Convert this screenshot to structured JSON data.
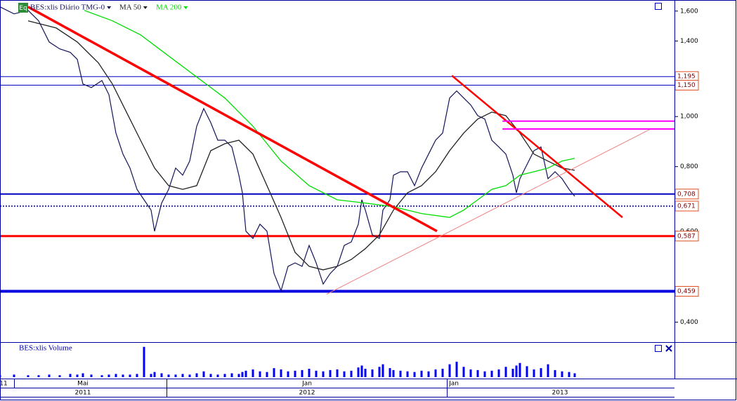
{
  "toolbar": {
    "eq_label": "Eq"
  },
  "chart_data": {
    "type": "line",
    "log_scale": true,
    "xlim": [
      0,
      120
    ],
    "ylim": [
      0.366,
      1.66
    ],
    "yticks": [
      {
        "value": 1.6,
        "label": "1,600"
      },
      {
        "value": 1.4,
        "label": "1,400"
      },
      {
        "value": 1.0,
        "label": "1,000"
      },
      {
        "value": 0.8,
        "label": "0,800"
      },
      {
        "value": 0.6,
        "label": "0,600"
      },
      {
        "value": 0.4,
        "label": "0,400"
      }
    ],
    "xticks": [
      {
        "value": 0.625,
        "label": "11"
      },
      {
        "value": 14.75,
        "label": "Mai"
      },
      {
        "value": 54.625,
        "label": "Jan"
      },
      {
        "value": 80.75,
        "label": "Jan"
      }
    ],
    "year_ticks": [
      {
        "value": 14.75,
        "label": "2011"
      },
      {
        "value": 54.625,
        "label": "2012"
      },
      {
        "value": 99.625,
        "label": "2013"
      }
    ],
    "x_boundaries": [
      2.5,
      29.625,
      79.5
    ],
    "series": [
      {
        "name": "BES:xlis Diário TMG-0",
        "color": "#14145a",
        "x": [
          0,
          2.5,
          5,
          6.875,
          8.75,
          10.625,
          12.5,
          13.75,
          14.75,
          16.25,
          18.125,
          19.375,
          20.625,
          21.875,
          23.125,
          24.375,
          25.625,
          26.875,
          27.5,
          28.75,
          30,
          31.25,
          32.5,
          33.75,
          35,
          36.25,
          37.5,
          38.75,
          40,
          41.25,
          42.5,
          43.125,
          43.75,
          45,
          46.25,
          47.5,
          48.75,
          50,
          51.25,
          52.5,
          53.75,
          55,
          56.25,
          57.5,
          58.75,
          60,
          61.25,
          62.5,
          63.75,
          64.375,
          65,
          66.25,
          67.5,
          68.125,
          69.375,
          70,
          71.25,
          72.5,
          73.75,
          75,
          76.25,
          77.5,
          78.75,
          80,
          81.25,
          82.5,
          83.75,
          85,
          86.25,
          87.5,
          88.75,
          90,
          91.25,
          91.875,
          92.5,
          93.75,
          95,
          96.25,
          97.5,
          98.75,
          100,
          101.25,
          102.25
        ],
        "values": [
          1.63,
          1.58,
          1.605,
          1.532,
          1.394,
          1.352,
          1.331,
          1.29,
          1.156,
          1.138,
          1.174,
          1.103,
          0.929,
          0.846,
          0.795,
          0.723,
          0.69,
          0.659,
          0.6,
          0.68,
          0.723,
          0.795,
          0.77,
          0.82,
          0.958,
          1.036,
          0.973,
          0.9,
          0.9,
          0.873,
          0.77,
          0.712,
          0.6,
          0.581,
          0.619,
          0.6,
          0.497,
          0.46,
          0.513,
          0.521,
          0.513,
          0.563,
          0.521,
          0.474,
          0.497,
          0.513,
          0.563,
          0.572,
          0.619,
          0.69,
          0.659,
          0.59,
          0.581,
          0.659,
          0.69,
          0.77,
          0.782,
          0.782,
          0.735,
          0.795,
          0.846,
          0.9,
          0.929,
          1.086,
          1.121,
          1.086,
          1.053,
          1.004,
          0.989,
          0.9,
          0.873,
          0.846,
          0.77,
          0.712,
          0.758,
          0.807,
          0.859,
          0.873,
          0.758,
          0.782,
          0.758,
          0.723,
          0.701
        ]
      },
      {
        "name": "MA 50",
        "color": "#222222",
        "x": [
          5,
          10,
          13.75,
          17.5,
          20,
          22.5,
          25,
          27.5,
          30,
          32.5,
          35,
          37.5,
          40,
          42.5,
          45,
          47.5,
          50,
          52.5,
          55,
          57.5,
          60,
          62.5,
          65,
          67.5,
          70,
          72.5,
          75,
          77.5,
          80,
          82.5,
          85,
          87.5,
          90,
          92.5,
          95,
          97.5,
          100,
          102.25
        ],
        "values": [
          1.532,
          1.484,
          1.394,
          1.27,
          1.156,
          1.02,
          0.9,
          0.795,
          0.735,
          0.723,
          0.735,
          0.859,
          0.886,
          0.9,
          0.846,
          0.735,
          0.638,
          0.546,
          0.513,
          0.505,
          0.513,
          0.529,
          0.555,
          0.59,
          0.659,
          0.712,
          0.735,
          0.782,
          0.859,
          0.929,
          0.989,
          1.02,
          1.004,
          0.929,
          0.846,
          0.82,
          0.795,
          0.787
        ]
      },
      {
        "name": "MA 200",
        "color": "#00dd00",
        "x": [
          15,
          20,
          25,
          30,
          35,
          40,
          45,
          50,
          55,
          60,
          65,
          70,
          75,
          80,
          82.5,
          85,
          87.5,
          90,
          92.5,
          95,
          97.5,
          100,
          102.25
        ],
        "values": [
          1.605,
          1.532,
          1.439,
          1.31,
          1.193,
          1.086,
          0.958,
          0.82,
          0.735,
          0.69,
          0.68,
          0.669,
          0.649,
          0.638,
          0.659,
          0.69,
          0.723,
          0.735,
          0.77,
          0.782,
          0.795,
          0.82,
          0.83
        ]
      }
    ],
    "levels": [
      {
        "value": 1.195,
        "label": "1,195",
        "color": "#0000c0",
        "width": 1
      },
      {
        "value": 1.15,
        "label": "1,150",
        "color": "#0000c0",
        "width": 1
      },
      {
        "value": 0.708,
        "label": "0,708",
        "color": "#0000c0",
        "width": 2
      },
      {
        "value": 0.671,
        "label": "0,671",
        "color": "#000080",
        "width": 1.5,
        "dash": true
      },
      {
        "value": 0.587,
        "label": "0,587",
        "color": "#ff0000",
        "width": 3
      },
      {
        "value": 0.459,
        "label": "0,459",
        "color": "#0000e0",
        "width": 4
      }
    ],
    "trendlines": [
      {
        "from": [
          5,
          1.63
        ],
        "to": [
          77.75,
          0.6
        ],
        "color": "#ff0000",
        "width": 3.5
      },
      {
        "from": [
          80.4,
          1.2
        ],
        "to": [
          110.75,
          0.638
        ],
        "color": "#ff0000",
        "width": 2.5
      },
      {
        "from": [
          58.1,
          0.453
        ],
        "to": [
          115.6,
          0.944
        ],
        "color": "#f08080",
        "width": 1
      },
      {
        "from": [
          89.4,
          0.98
        ],
        "to": [
          120,
          0.98
        ],
        "color": "#ff00ff",
        "width": 2
      },
      {
        "from": [
          89.4,
          0.946
        ],
        "to": [
          120,
          0.946
        ],
        "color": "#ff00ff",
        "width": 2
      }
    ],
    "volume": {
      "title": "BES:xlis Volume",
      "color": "#0000ff",
      "ylim": [
        0,
        50
      ],
      "values": [
        3,
        4,
        3,
        3,
        4,
        3,
        5,
        4,
        6,
        4,
        3,
        4,
        5,
        4,
        4,
        5,
        47,
        5,
        8,
        6,
        4,
        4,
        5,
        4,
        6,
        9,
        5,
        4,
        5,
        6,
        5,
        8,
        10,
        12,
        9,
        8,
        14,
        12,
        9,
        10,
        11,
        13,
        10,
        9,
        11,
        12,
        9,
        10,
        15,
        18,
        13,
        12,
        16,
        20,
        14,
        11,
        10,
        9,
        8,
        10,
        9,
        12,
        13,
        20,
        24,
        16,
        12,
        11,
        9,
        10,
        12,
        16,
        13,
        18,
        22,
        17,
        12,
        14,
        20,
        11,
        9,
        8,
        6
      ]
    }
  }
}
